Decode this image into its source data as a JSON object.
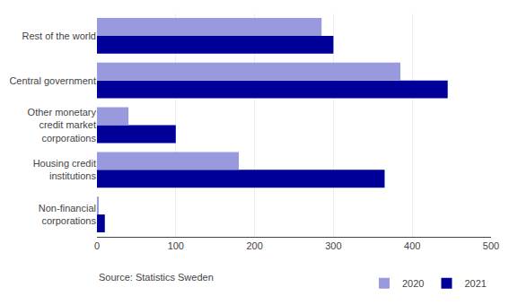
{
  "chart_data": {
    "type": "bar",
    "orientation": "horizontal",
    "categories": [
      "Non-financial\ncorporations",
      "Housing credit\ninstitutions",
      "Other monetary\ncredit market\ncorporations",
      "Central government",
      "Rest of the world"
    ],
    "series": [
      {
        "name": "2020",
        "color": "#9999dd",
        "values": [
          2,
          180,
          40,
          385,
          285
        ]
      },
      {
        "name": "2021",
        "color": "#000099",
        "values": [
          10,
          365,
          100,
          445,
          300
        ]
      }
    ],
    "xlim": [
      0,
      500
    ],
    "xticks": [
      0,
      100,
      200,
      300,
      400,
      500
    ],
    "grid": true,
    "legend": "lower right",
    "annotations": [
      "Source: Statistics Sweden"
    ]
  }
}
